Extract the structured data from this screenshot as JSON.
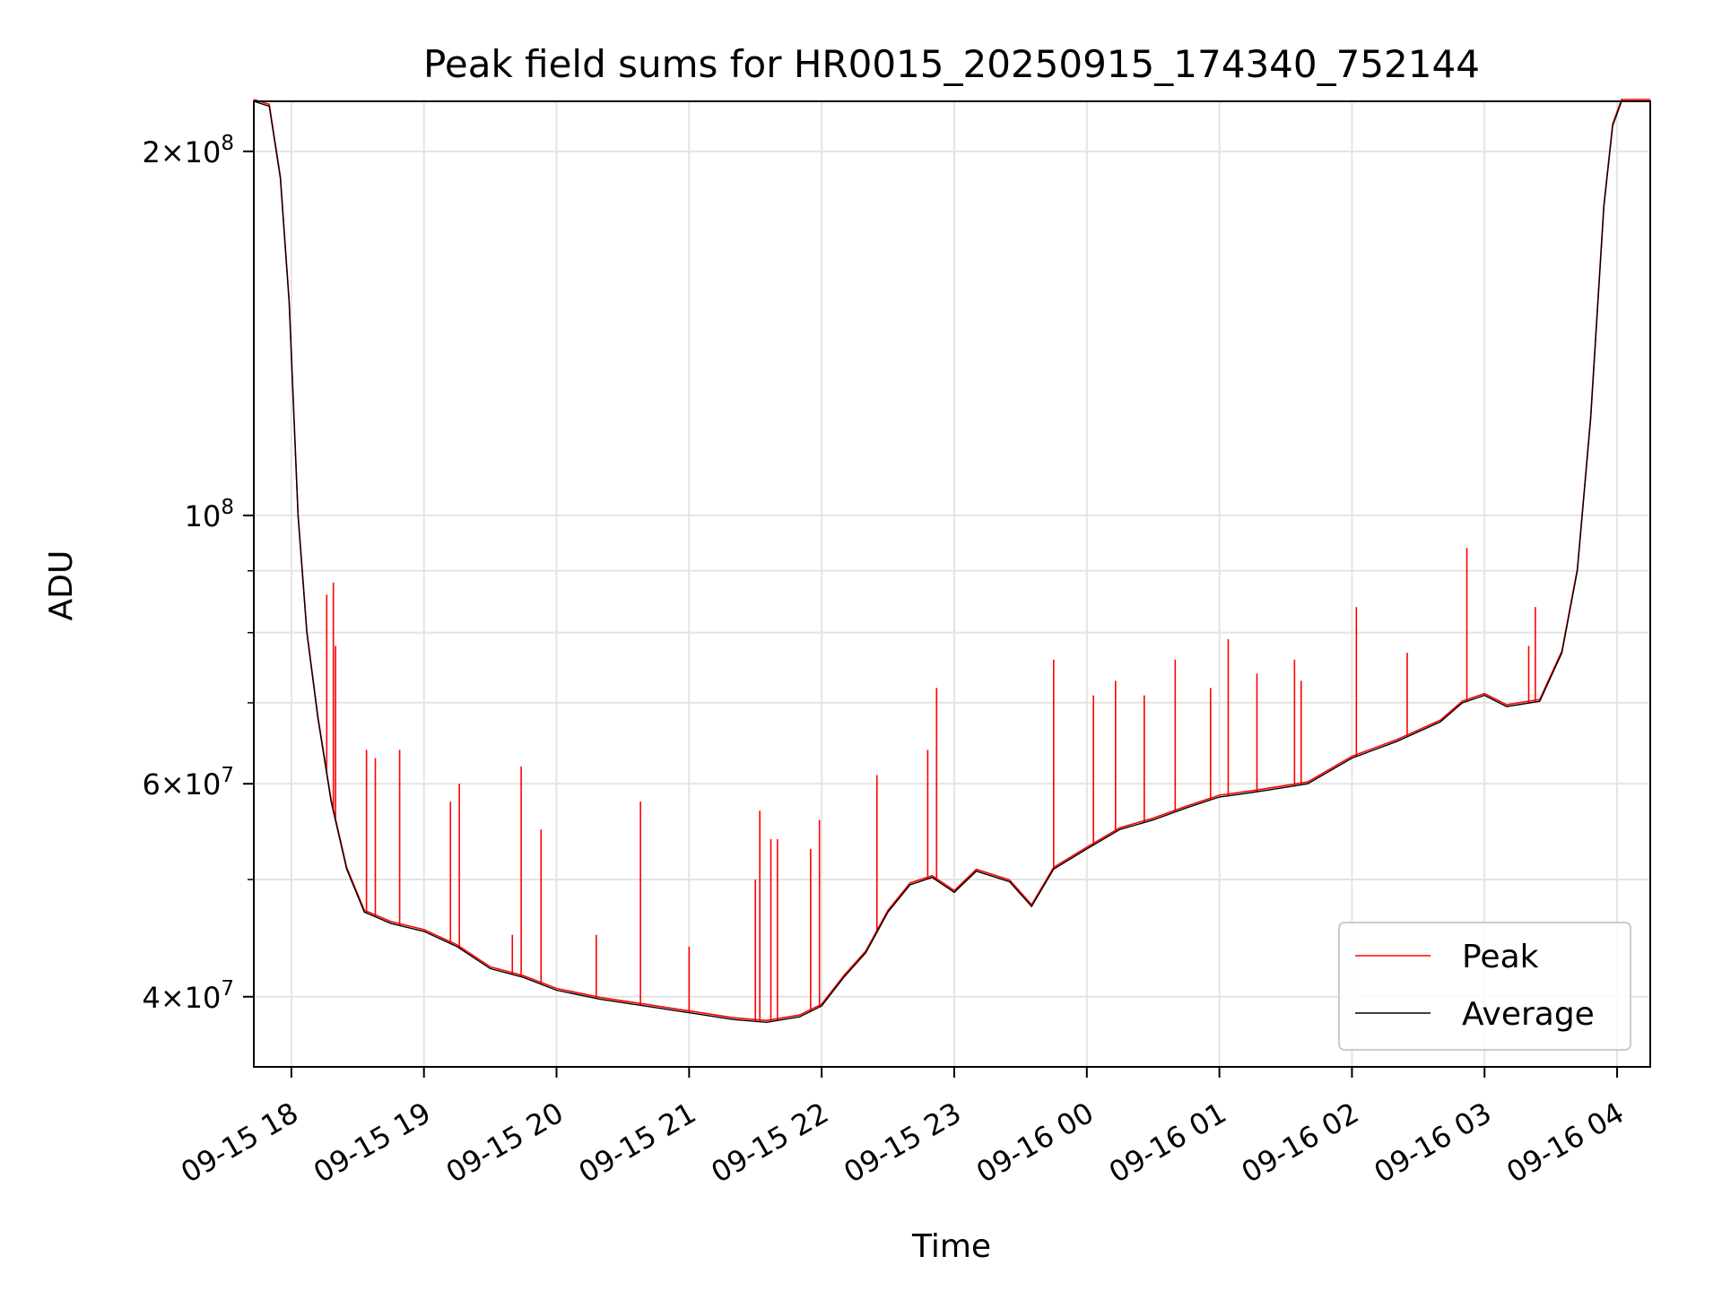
{
  "chart_data": {
    "type": "line",
    "title": "Peak field sums for HR0015_20250915_174340_752144",
    "xlabel": "Time",
    "ylabel": "ADU",
    "y_scale": "log",
    "xlim": [
      "2025-09-15 17:43",
      "2025-09-16 04:15"
    ],
    "ylim": [
      35000000,
      220000000
    ],
    "grid": true,
    "legend_placement": "bottom-right",
    "x_ticks": [
      {
        "t": "2025-09-15 18:00",
        "label": "09-15 18"
      },
      {
        "t": "2025-09-15 19:00",
        "label": "09-15 19"
      },
      {
        "t": "2025-09-15 20:00",
        "label": "09-15 20"
      },
      {
        "t": "2025-09-15 21:00",
        "label": "09-15 21"
      },
      {
        "t": "2025-09-15 22:00",
        "label": "09-15 22"
      },
      {
        "t": "2025-09-15 23:00",
        "label": "09-15 23"
      },
      {
        "t": "2025-09-16 00:00",
        "label": "09-16 00"
      },
      {
        "t": "2025-09-16 01:00",
        "label": "09-16 01"
      },
      {
        "t": "2025-09-16 02:00",
        "label": "09-16 02"
      },
      {
        "t": "2025-09-16 03:00",
        "label": "09-16 03"
      },
      {
        "t": "2025-09-16 04:00",
        "label": "09-16 04"
      }
    ],
    "y_ticks_major": [
      {
        "v": 40000000,
        "mant": "4",
        "exp": "7"
      },
      {
        "v": 60000000,
        "mant": "6",
        "exp": "7"
      },
      {
        "v": 100000000,
        "mant": "",
        "exp": "8"
      },
      {
        "v": 200000000,
        "mant": "2",
        "exp": "8"
      }
    ],
    "y_ticks_minor": [
      50000000,
      70000000,
      80000000,
      90000000
    ],
    "series": [
      {
        "name": "Average",
        "color": "#000000",
        "points": [
          [
            "2025-09-15 17:43",
            220000000
          ],
          [
            "2025-09-15 17:50",
            218000000
          ],
          [
            "2025-09-15 17:55",
            190000000
          ],
          [
            "2025-09-15 17:59",
            150000000
          ],
          [
            "2025-09-15 18:03",
            100000000
          ],
          [
            "2025-09-15 18:07",
            80000000
          ],
          [
            "2025-09-15 18:12",
            68000000
          ],
          [
            "2025-09-15 18:18",
            58000000
          ],
          [
            "2025-09-15 18:25",
            51000000
          ],
          [
            "2025-09-15 18:33",
            47000000
          ],
          [
            "2025-09-15 18:45",
            46000000
          ],
          [
            "2025-09-15 19:00",
            45300000
          ],
          [
            "2025-09-15 19:15",
            44000000
          ],
          [
            "2025-09-15 19:30",
            42200000
          ],
          [
            "2025-09-15 19:45",
            41500000
          ],
          [
            "2025-09-15 20:00",
            40500000
          ],
          [
            "2025-09-15 20:20",
            39800000
          ],
          [
            "2025-09-15 20:40",
            39300000
          ],
          [
            "2025-09-15 21:00",
            38800000
          ],
          [
            "2025-09-15 21:20",
            38300000
          ],
          [
            "2025-09-15 21:35",
            38100000
          ],
          [
            "2025-09-15 21:50",
            38500000
          ],
          [
            "2025-09-15 22:00",
            39300000
          ],
          [
            "2025-09-15 22:10",
            41500000
          ],
          [
            "2025-09-15 22:20",
            43500000
          ],
          [
            "2025-09-15 22:30",
            47000000
          ],
          [
            "2025-09-15 22:40",
            49500000
          ],
          [
            "2025-09-15 22:50",
            50200000
          ],
          [
            "2025-09-15 23:00",
            48800000
          ],
          [
            "2025-09-15 23:10",
            50800000
          ],
          [
            "2025-09-15 23:25",
            49800000
          ],
          [
            "2025-09-15 23:35",
            47500000
          ],
          [
            "2025-09-15 23:45",
            51000000
          ],
          [
            "2025-09-16 00:00",
            53000000
          ],
          [
            "2025-09-16 00:15",
            55000000
          ],
          [
            "2025-09-16 00:30",
            56000000
          ],
          [
            "2025-09-16 00:45",
            57300000
          ],
          [
            "2025-09-16 01:00",
            58500000
          ],
          [
            "2025-09-16 01:20",
            59200000
          ],
          [
            "2025-09-16 01:40",
            60000000
          ],
          [
            "2025-09-16 02:00",
            63000000
          ],
          [
            "2025-09-16 02:20",
            65000000
          ],
          [
            "2025-09-16 02:40",
            67500000
          ],
          [
            "2025-09-16 02:50",
            70000000
          ],
          [
            "2025-09-16 03:00",
            71000000
          ],
          [
            "2025-09-16 03:10",
            69500000
          ],
          [
            "2025-09-16 03:25",
            70200000
          ],
          [
            "2025-09-16 03:35",
            77000000
          ],
          [
            "2025-09-16 03:42",
            90000000
          ],
          [
            "2025-09-16 03:48",
            120000000
          ],
          [
            "2025-09-16 03:54",
            180000000
          ],
          [
            "2025-09-16 03:58",
            210000000
          ],
          [
            "2025-09-16 04:02",
            220000000
          ],
          [
            "2025-09-16 04:15",
            220000000
          ]
        ]
      },
      {
        "name": "Peak",
        "color": "#ff0000",
        "spikes": [
          [
            "2025-09-15 18:16",
            86000000
          ],
          [
            "2025-09-15 18:19",
            88000000
          ],
          [
            "2025-09-15 18:20",
            78000000
          ],
          [
            "2025-09-15 18:34",
            64000000
          ],
          [
            "2025-09-15 18:38",
            63000000
          ],
          [
            "2025-09-15 18:49",
            64000000
          ],
          [
            "2025-09-15 19:12",
            58000000
          ],
          [
            "2025-09-15 19:16",
            60000000
          ],
          [
            "2025-09-15 19:40",
            45000000
          ],
          [
            "2025-09-15 19:44",
            62000000
          ],
          [
            "2025-09-15 19:53",
            55000000
          ],
          [
            "2025-09-15 20:18",
            45000000
          ],
          [
            "2025-09-15 20:38",
            58000000
          ],
          [
            "2025-09-15 21:00",
            44000000
          ],
          [
            "2025-09-15 21:30",
            50000000
          ],
          [
            "2025-09-15 21:32",
            57000000
          ],
          [
            "2025-09-15 21:37",
            54000000
          ],
          [
            "2025-09-15 21:40",
            54000000
          ],
          [
            "2025-09-15 21:55",
            53000000
          ],
          [
            "2025-09-15 21:59",
            56000000
          ],
          [
            "2025-09-15 22:25",
            61000000
          ],
          [
            "2025-09-15 22:48",
            64000000
          ],
          [
            "2025-09-15 22:52",
            72000000
          ],
          [
            "2025-09-15 23:45",
            76000000
          ],
          [
            "2025-09-16 00:03",
            71000000
          ],
          [
            "2025-09-16 00:13",
            73000000
          ],
          [
            "2025-09-16 00:26",
            71000000
          ],
          [
            "2025-09-16 00:40",
            76000000
          ],
          [
            "2025-09-16 00:56",
            72000000
          ],
          [
            "2025-09-16 01:04",
            79000000
          ],
          [
            "2025-09-16 01:17",
            74000000
          ],
          [
            "2025-09-16 01:34",
            76000000
          ],
          [
            "2025-09-16 01:37",
            73000000
          ],
          [
            "2025-09-16 02:02",
            84000000
          ],
          [
            "2025-09-16 02:25",
            77000000
          ],
          [
            "2025-09-16 02:52",
            94000000
          ],
          [
            "2025-09-16 03:20",
            78000000
          ],
          [
            "2025-09-16 03:23",
            84000000
          ]
        ]
      }
    ]
  }
}
